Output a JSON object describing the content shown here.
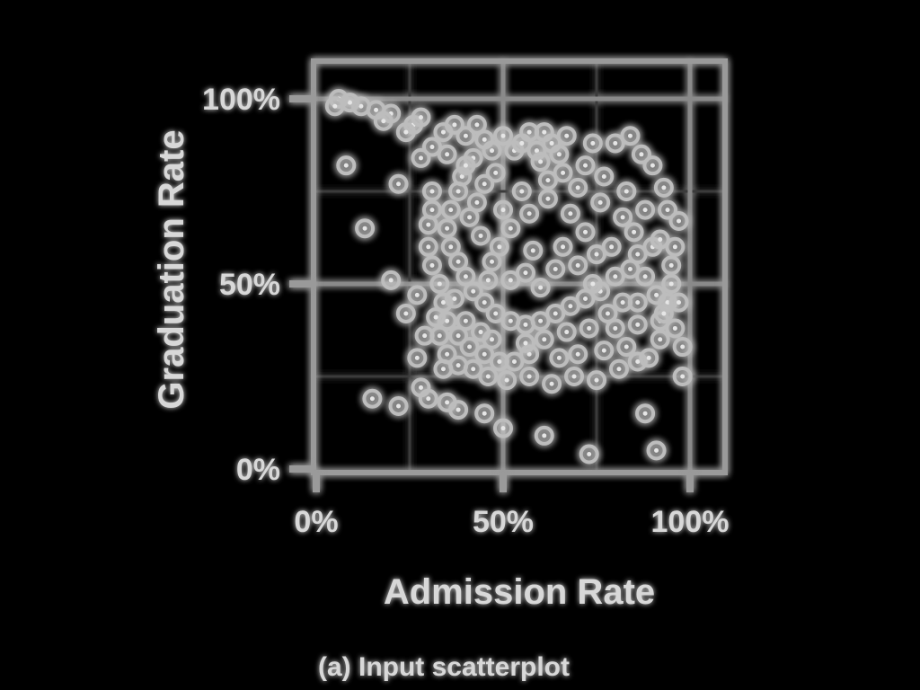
{
  "colors": {
    "background": "#000000",
    "foreground": "#d8d8d8",
    "glow": "#ffffff"
  },
  "caption": "(a) Input scatterplot",
  "chart_data": {
    "type": "scatter",
    "title": "",
    "xlabel": "Admission Rate",
    "ylabel": "Graduation Rate",
    "xlim": [
      0,
      100
    ],
    "ylim": [
      0,
      100
    ],
    "grid": true,
    "x_ticks": [
      {
        "value": 0,
        "label": "0%"
      },
      {
        "value": 50,
        "label": "50%"
      },
      {
        "value": 100,
        "label": "100%"
      }
    ],
    "y_ticks": [
      {
        "value": 0,
        "label": "0%"
      },
      {
        "value": 50,
        "label": "50%"
      },
      {
        "value": 100,
        "label": "100%"
      }
    ],
    "series": [
      {
        "name": "colleges",
        "points": [
          [
            8,
            82
          ],
          [
            13,
            65
          ],
          [
            22,
            77
          ],
          [
            27,
            47
          ],
          [
            20,
            51
          ],
          [
            24,
            42
          ],
          [
            15,
            19
          ],
          [
            22,
            17
          ],
          [
            28,
            22
          ],
          [
            30,
            19
          ],
          [
            35,
            18
          ],
          [
            38,
            16
          ],
          [
            45,
            15
          ],
          [
            50,
            11
          ],
          [
            61,
            9
          ],
          [
            73,
            4
          ],
          [
            88,
            15
          ],
          [
            91,
            5
          ],
          [
            98,
            25
          ],
          [
            96,
            38
          ],
          [
            95,
            55
          ],
          [
            97,
            67
          ],
          [
            87,
            85
          ],
          [
            84,
            90
          ],
          [
            80,
            88
          ],
          [
            74,
            88
          ],
          [
            67,
            90
          ],
          [
            61,
            91
          ],
          [
            57,
            91
          ],
          [
            50,
            90
          ],
          [
            45,
            89
          ],
          [
            40,
            90
          ],
          [
            34,
            91
          ],
          [
            31,
            87
          ],
          [
            28,
            84
          ],
          [
            31,
            75
          ],
          [
            31,
            70
          ],
          [
            30,
            66
          ],
          [
            30,
            60
          ],
          [
            31,
            55
          ],
          [
            33,
            50
          ],
          [
            34,
            45
          ],
          [
            35,
            40
          ],
          [
            38,
            36
          ],
          [
            41,
            33
          ],
          [
            45,
            31
          ],
          [
            49,
            29
          ],
          [
            53,
            29
          ],
          [
            57,
            31
          ],
          [
            61,
            35
          ],
          [
            67,
            37
          ],
          [
            73,
            38
          ],
          [
            80,
            38
          ],
          [
            86,
            39
          ],
          [
            92,
            40
          ],
          [
            94,
            45
          ],
          [
            95,
            50
          ],
          [
            90,
            60
          ],
          [
            85,
            64
          ],
          [
            92,
            62
          ],
          [
            88,
            70
          ],
          [
            83,
            75
          ],
          [
            77,
            79
          ],
          [
            72,
            82
          ],
          [
            65,
            85
          ],
          [
            59,
            86
          ],
          [
            53,
            86
          ],
          [
            47,
            86
          ],
          [
            42,
            84
          ],
          [
            39,
            79
          ],
          [
            38,
            75
          ],
          [
            36,
            70
          ],
          [
            35,
            65
          ],
          [
            36,
            60
          ],
          [
            38,
            56
          ],
          [
            40,
            52
          ],
          [
            42,
            48
          ],
          [
            45,
            45
          ],
          [
            48,
            42
          ],
          [
            52,
            40
          ],
          [
            56,
            39
          ],
          [
            60,
            40
          ],
          [
            64,
            42
          ],
          [
            68,
            44
          ],
          [
            72,
            46
          ],
          [
            76,
            48
          ],
          [
            80,
            52
          ],
          [
            84,
            54
          ],
          [
            88,
            52
          ],
          [
            91,
            47
          ],
          [
            93,
            42
          ],
          [
            63,
            23
          ],
          [
            69,
            25
          ],
          [
            75,
            24
          ],
          [
            81,
            27
          ],
          [
            86,
            29
          ],
          [
            57,
            25
          ],
          [
            51,
            24
          ],
          [
            46,
            25
          ],
          [
            42,
            27
          ],
          [
            38,
            28
          ],
          [
            35,
            31
          ],
          [
            33,
            36
          ],
          [
            44,
            37
          ],
          [
            47,
            35
          ],
          [
            56,
            34
          ],
          [
            65,
            30
          ],
          [
            70,
            31
          ],
          [
            77,
            32
          ],
          [
            83,
            33
          ],
          [
            41,
            68
          ],
          [
            43,
            72
          ],
          [
            44,
            63
          ],
          [
            49,
            60
          ],
          [
            52,
            65
          ],
          [
            57,
            69
          ],
          [
            62,
            73
          ],
          [
            68,
            69
          ],
          [
            72,
            64
          ],
          [
            75,
            58
          ],
          [
            79,
            60
          ],
          [
            56,
            53
          ],
          [
            60,
            49
          ],
          [
            64,
            54
          ],
          [
            52,
            51
          ],
          [
            47,
            56
          ],
          [
            66,
            60
          ],
          [
            70,
            55
          ],
          [
            58,
            59
          ],
          [
            50,
            70
          ],
          [
            55,
            75
          ],
          [
            62,
            78
          ],
          [
            70,
            76
          ],
          [
            76,
            72
          ],
          [
            82,
            68
          ],
          [
            86,
            58
          ],
          [
            45,
            77
          ],
          [
            40,
            82
          ],
          [
            35,
            85
          ],
          [
            26,
            93
          ],
          [
            20,
            96
          ],
          [
            16,
            97
          ],
          [
            12,
            98
          ],
          [
            9,
            99
          ],
          [
            6,
            100
          ],
          [
            5,
            98
          ],
          [
            18,
            94
          ],
          [
            24,
            91
          ],
          [
            28,
            95
          ],
          [
            37,
            93
          ],
          [
            43,
            93
          ],
          [
            55,
            88
          ],
          [
            63,
            88
          ],
          [
            90,
            82
          ],
          [
            93,
            76
          ],
          [
            94,
            70
          ],
          [
            96,
            60
          ],
          [
            97,
            45
          ],
          [
            98,
            33
          ],
          [
            89,
            30
          ],
          [
            92,
            35
          ],
          [
            86,
            45
          ],
          [
            78,
            42
          ],
          [
            74,
            50
          ],
          [
            82,
            45
          ],
          [
            37,
            46
          ],
          [
            32,
            41
          ],
          [
            29,
            36
          ],
          [
            34,
            27
          ],
          [
            27,
            30
          ],
          [
            40,
            40
          ],
          [
            46,
            51
          ],
          [
            60,
            83
          ],
          [
            66,
            80
          ],
          [
            48,
            80
          ]
        ]
      }
    ]
  }
}
